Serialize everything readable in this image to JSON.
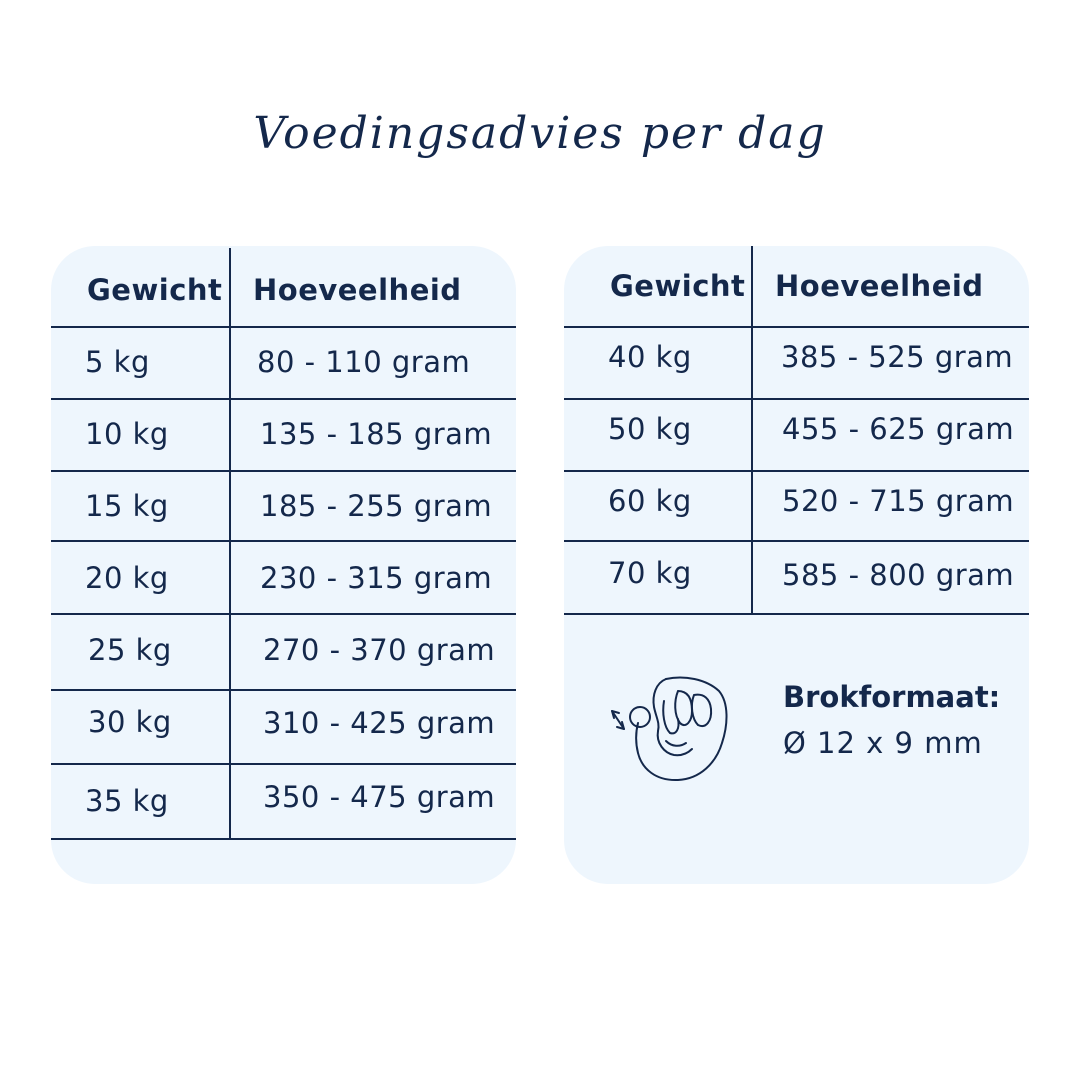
{
  "title": "Voedingsadvies per dag",
  "left_table": {
    "headers": [
      "Gewicht",
      "Hoeveelheid"
    ],
    "rows": [
      {
        "weight": "5 kg",
        "amount": "80 - 110 gram"
      },
      {
        "weight": "10 kg",
        "amount": "135 - 185 gram"
      },
      {
        "weight": "15 kg",
        "amount": "185 - 255 gram"
      },
      {
        "weight": "20 kg",
        "amount": "230 - 315 gram"
      },
      {
        "weight": "25 kg",
        "amount": "270 - 370 gram"
      },
      {
        "weight": "30 kg",
        "amount": "310 - 425 gram"
      },
      {
        "weight": "35 kg",
        "amount": "350 - 475 gram"
      }
    ]
  },
  "right_table": {
    "headers": [
      "Gewicht",
      "Hoeveelheid"
    ],
    "rows": [
      {
        "weight": "40 kg",
        "amount": "385 - 525 gram"
      },
      {
        "weight": "50 kg",
        "amount": "455 - 625 gram"
      },
      {
        "weight": "60 kg",
        "amount": "520 - 715 gram"
      },
      {
        "weight": "70 kg",
        "amount": "585 - 800 gram"
      }
    ]
  },
  "kibble": {
    "label": "Brokformaat:",
    "size": "Ø 12 x 9 mm",
    "icon": "hand-holding-kibble-icon"
  },
  "colors": {
    "text": "#14284b",
    "card_background": "#eef6fd",
    "page_background": "#ffffff"
  }
}
